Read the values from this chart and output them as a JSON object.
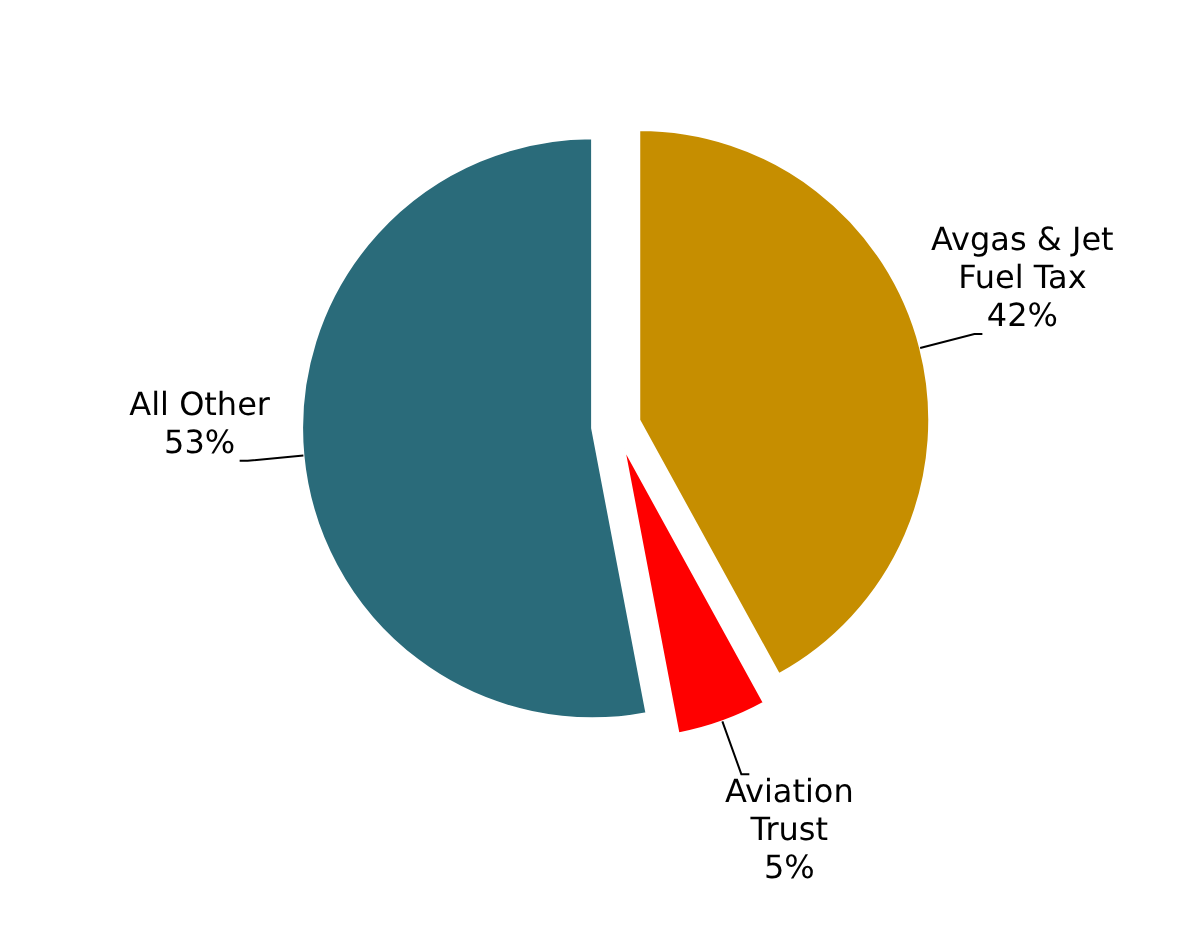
{
  "chart_data": {
    "type": "pie",
    "categories": [
      "Avgas & Jet Fuel Tax",
      "Aviation Trust",
      "All Other"
    ],
    "values": [
      42,
      5,
      53
    ],
    "colors": [
      "#c68e00",
      "#ff0000",
      "#2a6b7a"
    ],
    "value_labels": [
      "42%",
      "5%",
      "53%"
    ],
    "legend": false
  }
}
